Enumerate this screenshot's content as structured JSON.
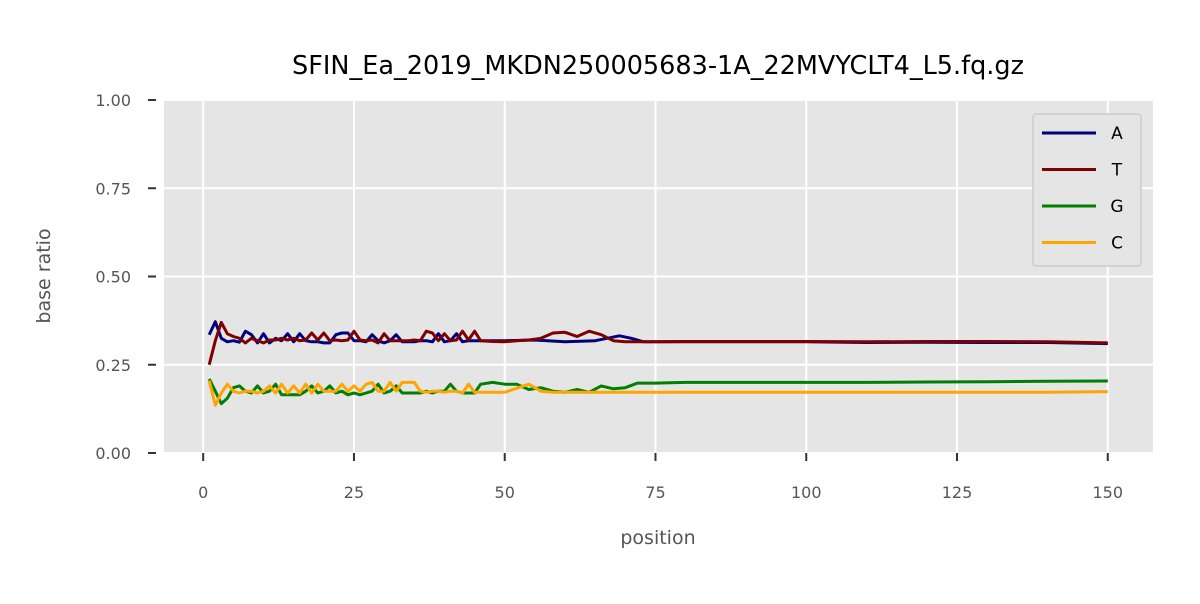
{
  "chart_data": {
    "type": "line",
    "title": "SFIN_Ea_2019_MKDN250005683-1A_22MVYCLT4_L5.fq.gz",
    "xlabel": "position",
    "ylabel": "base ratio",
    "xlim": [
      -6.5,
      157.5
    ],
    "ylim": [
      0,
      1
    ],
    "xticks": [
      0,
      25,
      50,
      75,
      100,
      125,
      150
    ],
    "xtick_labels": [
      "0",
      "25",
      "50",
      "75",
      "100",
      "125",
      "150"
    ],
    "yticks": [
      0,
      0.25,
      0.5,
      0.75,
      1
    ],
    "ytick_labels": [
      "0.00",
      "0.25",
      "0.50",
      "0.75",
      "1.00"
    ],
    "grid": true,
    "legend_position": "top-right",
    "colors": {
      "plot_bg": "#e5e5e5",
      "grid": "#ffffff",
      "text": "#555555",
      "title": "#000000"
    },
    "series": [
      {
        "name": "A",
        "color": "#00007f",
        "points": [
          [
            1,
            0.335
          ],
          [
            2,
            0.372
          ],
          [
            3,
            0.325
          ],
          [
            4,
            0.315
          ],
          [
            5,
            0.318
          ],
          [
            6,
            0.314
          ],
          [
            7,
            0.345
          ],
          [
            8,
            0.335
          ],
          [
            9,
            0.312
          ],
          [
            10,
            0.338
          ],
          [
            11,
            0.312
          ],
          [
            12,
            0.325
          ],
          [
            13,
            0.318
          ],
          [
            14,
            0.338
          ],
          [
            15,
            0.315
          ],
          [
            16,
            0.338
          ],
          [
            17,
            0.318
          ],
          [
            18,
            0.315
          ],
          [
            19,
            0.315
          ],
          [
            20,
            0.312
          ],
          [
            21,
            0.312
          ],
          [
            22,
            0.335
          ],
          [
            23,
            0.34
          ],
          [
            24,
            0.34
          ],
          [
            25,
            0.318
          ],
          [
            26,
            0.318
          ],
          [
            27,
            0.315
          ],
          [
            28,
            0.335
          ],
          [
            29,
            0.318
          ],
          [
            30,
            0.312
          ],
          [
            31,
            0.318
          ],
          [
            32,
            0.335
          ],
          [
            33,
            0.315
          ],
          [
            34,
            0.315
          ],
          [
            35,
            0.315
          ],
          [
            36,
            0.318
          ],
          [
            37,
            0.318
          ],
          [
            38,
            0.315
          ],
          [
            39,
            0.338
          ],
          [
            40,
            0.315
          ],
          [
            41,
            0.318
          ],
          [
            42,
            0.338
          ],
          [
            43,
            0.315
          ],
          [
            44,
            0.318
          ],
          [
            45,
            0.318
          ],
          [
            50,
            0.318
          ],
          [
            55,
            0.32
          ],
          [
            60,
            0.315
          ],
          [
            65,
            0.318
          ],
          [
            67,
            0.325
          ],
          [
            69,
            0.332
          ],
          [
            71,
            0.325
          ],
          [
            73,
            0.315
          ],
          [
            80,
            0.315
          ],
          [
            90,
            0.315
          ],
          [
            100,
            0.315
          ],
          [
            110,
            0.313
          ],
          [
            120,
            0.314
          ],
          [
            130,
            0.313
          ],
          [
            140,
            0.313
          ],
          [
            150,
            0.31
          ]
        ]
      },
      {
        "name": "T",
        "color": "#7f0000",
        "points": [
          [
            1,
            0.25
          ],
          [
            2,
            0.318
          ],
          [
            3,
            0.37
          ],
          [
            4,
            0.338
          ],
          [
            5,
            0.33
          ],
          [
            6,
            0.325
          ],
          [
            7,
            0.312
          ],
          [
            8,
            0.325
          ],
          [
            9,
            0.318
          ],
          [
            10,
            0.312
          ],
          [
            11,
            0.32
          ],
          [
            12,
            0.32
          ],
          [
            13,
            0.325
          ],
          [
            14,
            0.32
          ],
          [
            15,
            0.325
          ],
          [
            16,
            0.318
          ],
          [
            17,
            0.32
          ],
          [
            18,
            0.34
          ],
          [
            19,
            0.32
          ],
          [
            20,
            0.34
          ],
          [
            21,
            0.318
          ],
          [
            22,
            0.32
          ],
          [
            23,
            0.318
          ],
          [
            24,
            0.32
          ],
          [
            25,
            0.345
          ],
          [
            26,
            0.32
          ],
          [
            27,
            0.318
          ],
          [
            28,
            0.32
          ],
          [
            29,
            0.312
          ],
          [
            30,
            0.338
          ],
          [
            31,
            0.318
          ],
          [
            32,
            0.318
          ],
          [
            33,
            0.318
          ],
          [
            34,
            0.318
          ],
          [
            35,
            0.32
          ],
          [
            36,
            0.318
          ],
          [
            37,
            0.345
          ],
          [
            38,
            0.34
          ],
          [
            39,
            0.318
          ],
          [
            40,
            0.338
          ],
          [
            41,
            0.318
          ],
          [
            42,
            0.32
          ],
          [
            43,
            0.345
          ],
          [
            44,
            0.32
          ],
          [
            45,
            0.345
          ],
          [
            46,
            0.318
          ],
          [
            48,
            0.316
          ],
          [
            50,
            0.315
          ],
          [
            52,
            0.318
          ],
          [
            54,
            0.32
          ],
          [
            56,
            0.325
          ],
          [
            58,
            0.34
          ],
          [
            60,
            0.342
          ],
          [
            62,
            0.33
          ],
          [
            64,
            0.345
          ],
          [
            66,
            0.335
          ],
          [
            68,
            0.318
          ],
          [
            70,
            0.315
          ],
          [
            75,
            0.315
          ],
          [
            80,
            0.316
          ],
          [
            90,
            0.316
          ],
          [
            100,
            0.316
          ],
          [
            110,
            0.315
          ],
          [
            120,
            0.316
          ],
          [
            130,
            0.316
          ],
          [
            140,
            0.315
          ],
          [
            150,
            0.312
          ]
        ]
      },
      {
        "name": "G",
        "color": "#007f00",
        "points": [
          [
            1,
            0.21
          ],
          [
            2,
            0.175
          ],
          [
            3,
            0.14
          ],
          [
            4,
            0.155
          ],
          [
            5,
            0.185
          ],
          [
            6,
            0.19
          ],
          [
            7,
            0.175
          ],
          [
            8,
            0.17
          ],
          [
            9,
            0.19
          ],
          [
            10,
            0.17
          ],
          [
            11,
            0.175
          ],
          [
            12,
            0.195
          ],
          [
            13,
            0.165
          ],
          [
            14,
            0.165
          ],
          [
            15,
            0.165
          ],
          [
            16,
            0.165
          ],
          [
            17,
            0.175
          ],
          [
            18,
            0.19
          ],
          [
            19,
            0.17
          ],
          [
            20,
            0.175
          ],
          [
            21,
            0.19
          ],
          [
            22,
            0.17
          ],
          [
            23,
            0.175
          ],
          [
            24,
            0.165
          ],
          [
            25,
            0.17
          ],
          [
            26,
            0.165
          ],
          [
            27,
            0.17
          ],
          [
            28,
            0.175
          ],
          [
            29,
            0.195
          ],
          [
            30,
            0.17
          ],
          [
            31,
            0.175
          ],
          [
            32,
            0.19
          ],
          [
            33,
            0.17
          ],
          [
            34,
            0.17
          ],
          [
            35,
            0.17
          ],
          [
            36,
            0.17
          ],
          [
            37,
            0.175
          ],
          [
            38,
            0.17
          ],
          [
            39,
            0.175
          ],
          [
            40,
            0.175
          ],
          [
            41,
            0.195
          ],
          [
            42,
            0.175
          ],
          [
            43,
            0.17
          ],
          [
            44,
            0.17
          ],
          [
            45,
            0.17
          ],
          [
            46,
            0.195
          ],
          [
            48,
            0.2
          ],
          [
            50,
            0.195
          ],
          [
            52,
            0.195
          ],
          [
            54,
            0.18
          ],
          [
            56,
            0.185
          ],
          [
            58,
            0.175
          ],
          [
            60,
            0.172
          ],
          [
            62,
            0.18
          ],
          [
            64,
            0.172
          ],
          [
            66,
            0.19
          ],
          [
            68,
            0.182
          ],
          [
            70,
            0.185
          ],
          [
            72,
            0.198
          ],
          [
            75,
            0.198
          ],
          [
            80,
            0.2
          ],
          [
            90,
            0.2
          ],
          [
            100,
            0.2
          ],
          [
            110,
            0.2
          ],
          [
            120,
            0.201
          ],
          [
            130,
            0.202
          ],
          [
            140,
            0.203
          ],
          [
            150,
            0.204
          ]
        ]
      },
      {
        "name": "C",
        "color": "#ffa500",
        "points": [
          [
            1,
            0.205
          ],
          [
            2,
            0.135
          ],
          [
            3,
            0.17
          ],
          [
            4,
            0.195
          ],
          [
            5,
            0.175
          ],
          [
            6,
            0.17
          ],
          [
            7,
            0.175
          ],
          [
            8,
            0.175
          ],
          [
            9,
            0.17
          ],
          [
            10,
            0.175
          ],
          [
            11,
            0.19
          ],
          [
            12,
            0.17
          ],
          [
            13,
            0.195
          ],
          [
            14,
            0.17
          ],
          [
            15,
            0.19
          ],
          [
            16,
            0.17
          ],
          [
            17,
            0.195
          ],
          [
            18,
            0.17
          ],
          [
            19,
            0.195
          ],
          [
            20,
            0.175
          ],
          [
            21,
            0.175
          ],
          [
            22,
            0.175
          ],
          [
            23,
            0.195
          ],
          [
            24,
            0.175
          ],
          [
            25,
            0.19
          ],
          [
            26,
            0.175
          ],
          [
            27,
            0.195
          ],
          [
            28,
            0.2
          ],
          [
            29,
            0.175
          ],
          [
            30,
            0.175
          ],
          [
            31,
            0.2
          ],
          [
            32,
            0.175
          ],
          [
            33,
            0.2
          ],
          [
            34,
            0.2
          ],
          [
            35,
            0.2
          ],
          [
            36,
            0.175
          ],
          [
            37,
            0.172
          ],
          [
            38,
            0.175
          ],
          [
            39,
            0.175
          ],
          [
            40,
            0.172
          ],
          [
            41,
            0.175
          ],
          [
            42,
            0.175
          ],
          [
            43,
            0.17
          ],
          [
            44,
            0.195
          ],
          [
            45,
            0.172
          ],
          [
            46,
            0.172
          ],
          [
            50,
            0.172
          ],
          [
            54,
            0.195
          ],
          [
            56,
            0.175
          ],
          [
            58,
            0.172
          ],
          [
            60,
            0.172
          ],
          [
            65,
            0.172
          ],
          [
            70,
            0.172
          ],
          [
            80,
            0.172
          ],
          [
            90,
            0.172
          ],
          [
            100,
            0.172
          ],
          [
            110,
            0.172
          ],
          [
            120,
            0.172
          ],
          [
            130,
            0.172
          ],
          [
            140,
            0.172
          ],
          [
            150,
            0.174
          ]
        ]
      }
    ]
  }
}
